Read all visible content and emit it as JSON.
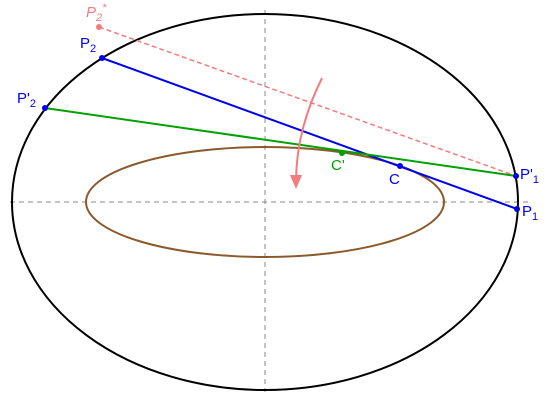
{
  "colors": {
    "outer_ellipse": "#000000",
    "inner_ellipse": "#8b5a2b",
    "axes": "#888888",
    "blue_line": "#0000ee",
    "green_line": "#00a000",
    "pink_dashed": "#f47c7c",
    "arrow": "#f47c7c",
    "green_point": "#00a000",
    "blue_point": "#0000ee"
  },
  "labels": {
    "p2_star": {
      "main": "P",
      "sub": "2",
      "sup": "*"
    },
    "p2": {
      "main": "P",
      "sub": "2"
    },
    "p2_prime": {
      "main": "P'",
      "sub": "2"
    },
    "c_prime": {
      "main": "C'"
    },
    "c": {
      "main": "C"
    },
    "p1_prime": {
      "main": "P'",
      "sub": "1"
    },
    "p1": {
      "main": "P",
      "sub": "1"
    }
  },
  "icons": {
    "rotation_arrow": "curved-arrow-icon"
  }
}
